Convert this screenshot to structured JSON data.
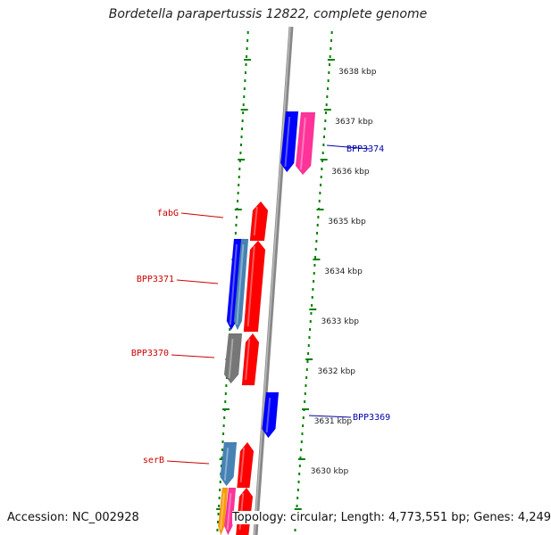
{
  "title": "Bordetella parapertussis 12822, complete genome",
  "footer": {
    "accession": "Accession: NC_002928",
    "summary": "Topology: circular; Length: 4,773,551 bp; Genes: 4,249"
  },
  "colors": {
    "forward": "#ff0000",
    "reverse_blue": "#0000ff",
    "pink": "#ff3399",
    "grey": "#777777",
    "steel": "#4682b4",
    "orange": "#ff9900",
    "label_red": "#cc0000",
    "label_blue": "#0000aa",
    "tick_green": "#008000",
    "axis": "#888888"
  },
  "ruler": {
    "unit": "kbp",
    "ticks": [
      "3638 kbp",
      "3637 kbp",
      "3636 kbp",
      "3635 kbp",
      "3634 kbp",
      "3633 kbp",
      "3632 kbp",
      "3631 kbp",
      "3630 kbp"
    ]
  },
  "genes": {
    "labeled": [
      {
        "name": "BPP3374",
        "color": "label_blue"
      },
      {
        "name": "fabG",
        "color": "label_red"
      },
      {
        "name": "BPP3371",
        "color": "label_red"
      },
      {
        "name": "BPP3370",
        "color": "label_red"
      },
      {
        "name": "BPP3369",
        "color": "label_blue"
      },
      {
        "name": "serB",
        "color": "label_red"
      }
    ]
  }
}
